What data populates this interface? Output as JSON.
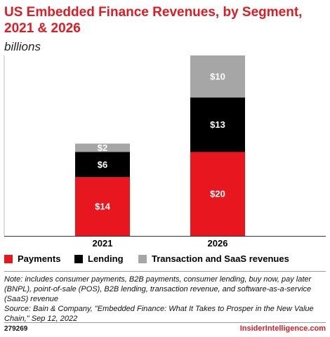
{
  "chart_data": {
    "type": "bar",
    "stacked": true,
    "title": "US Embedded Finance Revenues, by Segment, 2021 & 2026",
    "subtitle": "billions",
    "categories": [
      "2021",
      "2026"
    ],
    "series": [
      {
        "name": "Payments",
        "color": "#e8161e",
        "values": [
          14,
          20
        ],
        "labels": [
          "$14",
          "$20"
        ]
      },
      {
        "name": "Lending",
        "color": "#000000",
        "values": [
          6,
          13
        ],
        "labels": [
          "$6",
          "$13"
        ]
      },
      {
        "name": "Transaction and SaaS revenues",
        "color": "#a6a6a6",
        "values": [
          2,
          10
        ],
        "labels": [
          "$2",
          "$10"
        ]
      }
    ],
    "ylim": [
      0,
      43
    ],
    "grid": false,
    "legend_placement": "bottom"
  },
  "note": "Note: includes consumer payments, B2B payments, consumer lending, buy now, pay later (BNPL), point-of-sale (POS), B2B lending, transaction revenue, and software-as-a-service (SaaS) revenue",
  "source": "Source: Bain & Company, \"Embedded Finance: What It Takes to Prosper in the New Value Chain,\" Sep 12, 2022",
  "footer": {
    "chart_id": "279269",
    "brand": "InsiderIntelligence.com"
  }
}
